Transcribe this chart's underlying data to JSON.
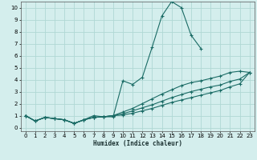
{
  "xlabel": "Humidex (Indice chaleur)",
  "bg_color": "#d4eeed",
  "grid_color": "#b0d8d5",
  "line_color": "#1a6b65",
  "xlim": [
    -0.5,
    23.5
  ],
  "ylim": [
    -0.3,
    10.5
  ],
  "xticks": [
    0,
    1,
    2,
    3,
    4,
    5,
    6,
    7,
    8,
    9,
    10,
    11,
    12,
    13,
    14,
    15,
    16,
    17,
    18,
    19,
    20,
    21,
    22,
    23
  ],
  "yticks": [
    0,
    1,
    2,
    3,
    4,
    5,
    6,
    7,
    8,
    9,
    10
  ],
  "line1_x": [
    0,
    1,
    2,
    3,
    4,
    5,
    6,
    7,
    8,
    9,
    10,
    11,
    12,
    13,
    14,
    15,
    16,
    17,
    18,
    19,
    20,
    21,
    22,
    23
  ],
  "line1_y": [
    1.0,
    0.55,
    0.85,
    0.75,
    0.65,
    0.35,
    0.65,
    1.0,
    0.9,
    0.9,
    3.9,
    3.6,
    4.2,
    6.7,
    9.3,
    10.5,
    10.0,
    7.7,
    6.6,
    null,
    null,
    null,
    null,
    null
  ],
  "line2_x": [
    0,
    1,
    2,
    3,
    4,
    5,
    6,
    7,
    8,
    9,
    10,
    11,
    12,
    13,
    14,
    15,
    16,
    17,
    18,
    19,
    20,
    21,
    22,
    23
  ],
  "line2_y": [
    1.0,
    0.55,
    0.85,
    0.75,
    0.65,
    0.35,
    0.65,
    0.85,
    0.9,
    1.0,
    1.3,
    1.6,
    2.0,
    2.4,
    2.8,
    3.15,
    3.5,
    3.75,
    3.9,
    4.1,
    4.3,
    4.6,
    4.7,
    4.6
  ],
  "line3_x": [
    0,
    1,
    2,
    3,
    4,
    5,
    6,
    7,
    8,
    9,
    10,
    11,
    12,
    13,
    14,
    15,
    16,
    17,
    18,
    19,
    20,
    21,
    22,
    23
  ],
  "line3_y": [
    1.0,
    0.55,
    0.85,
    0.75,
    0.65,
    0.35,
    0.65,
    0.85,
    0.9,
    1.0,
    1.15,
    1.4,
    1.65,
    1.9,
    2.2,
    2.5,
    2.75,
    3.0,
    3.2,
    3.4,
    3.55,
    3.85,
    4.05,
    4.6
  ],
  "line4_x": [
    0,
    1,
    2,
    3,
    4,
    5,
    6,
    7,
    8,
    9,
    10,
    11,
    12,
    13,
    14,
    15,
    16,
    17,
    18,
    19,
    20,
    21,
    22,
    23
  ],
  "line4_y": [
    1.0,
    0.55,
    0.85,
    0.75,
    0.65,
    0.35,
    0.65,
    0.85,
    0.9,
    1.0,
    1.05,
    1.2,
    1.4,
    1.6,
    1.85,
    2.1,
    2.3,
    2.5,
    2.7,
    2.9,
    3.1,
    3.4,
    3.65,
    4.6
  ]
}
